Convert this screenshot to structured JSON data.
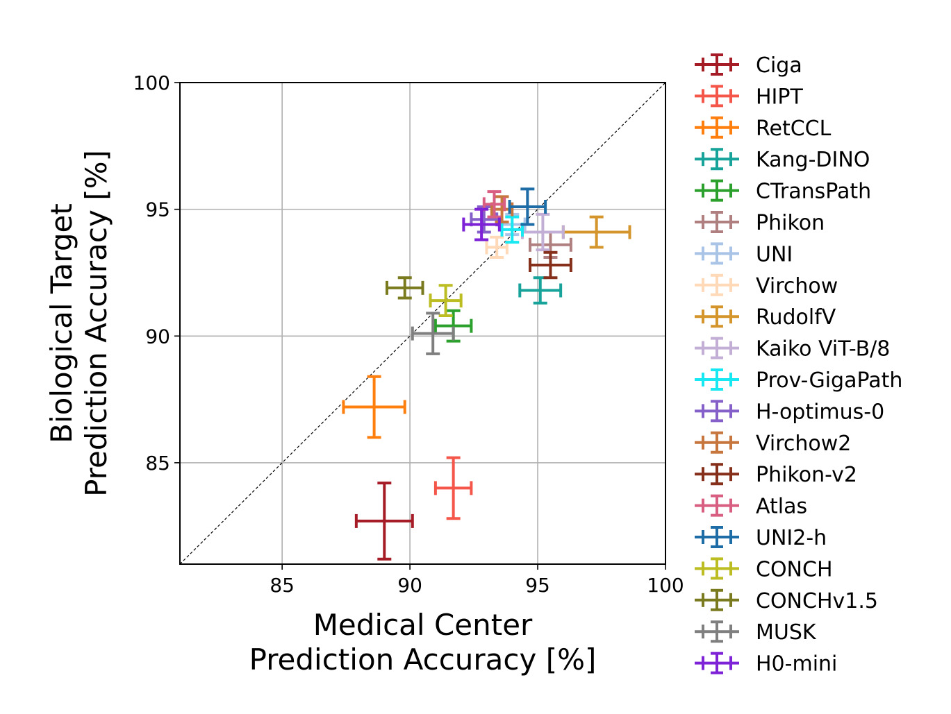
{
  "chart_data": {
    "type": "scatter",
    "title": "",
    "xlabel": [
      "Medical Center",
      "Prediction Accuracy [%]"
    ],
    "ylabel": [
      "Biological Target",
      "Prediction Accuracy [%]"
    ],
    "xlim": [
      81,
      100
    ],
    "ylim": [
      81,
      100
    ],
    "xticks": [
      85,
      90,
      95,
      100
    ],
    "yticks": [
      85,
      90,
      95,
      100
    ],
    "grid": true,
    "diagonal_reference_line": true,
    "legend_position": "outside-right",
    "series": [
      {
        "name": "Ciga",
        "color": "#a61c26",
        "x": 89.0,
        "y": 82.7,
        "xerr": 1.1,
        "yerr": 1.5
      },
      {
        "name": "HIPT",
        "color": "#f5564a",
        "x": 91.7,
        "y": 84.0,
        "xerr": 0.7,
        "yerr": 1.2
      },
      {
        "name": "RetCCL",
        "color": "#ff7f0e",
        "x": 88.6,
        "y": 87.2,
        "xerr": 1.2,
        "yerr": 1.2
      },
      {
        "name": "Kang-DINO",
        "color": "#17a39a",
        "x": 95.1,
        "y": 91.8,
        "xerr": 0.8,
        "yerr": 0.5
      },
      {
        "name": "CTransPath",
        "color": "#2ca02c",
        "x": 91.7,
        "y": 90.4,
        "xerr": 0.7,
        "yerr": 0.6
      },
      {
        "name": "Phikon",
        "color": "#b07f7f",
        "x": 95.5,
        "y": 93.6,
        "xerr": 0.8,
        "yerr": 0.5
      },
      {
        "name": "UNI",
        "color": "#a9c4e6",
        "x": 94.0,
        "y": 94.4,
        "xerr": 0.5,
        "yerr": 0.4
      },
      {
        "name": "Virchow",
        "color": "#ffd9b8",
        "x": 93.4,
        "y": 93.5,
        "xerr": 0.4,
        "yerr": 0.4
      },
      {
        "name": "RudolfV",
        "color": "#d4962c",
        "x": 97.3,
        "y": 94.1,
        "xerr": 1.3,
        "yerr": 0.6
      },
      {
        "name": "Kaiko ViT-B/8",
        "color": "#c3afd6",
        "x": 95.2,
        "y": 94.1,
        "xerr": 0.8,
        "yerr": 0.7
      },
      {
        "name": "Prov-GigaPath",
        "color": "#17e8f2",
        "x": 94.0,
        "y": 94.2,
        "xerr": 0.4,
        "yerr": 0.5
      },
      {
        "name": "H-optimus-0",
        "color": "#8560c9",
        "x": 92.9,
        "y": 94.6,
        "xerr": 0.5,
        "yerr": 0.5
      },
      {
        "name": "Virchow2",
        "color": "#c7773d",
        "x": 93.6,
        "y": 95.0,
        "xerr": 0.4,
        "yerr": 0.5
      },
      {
        "name": "Phikon-v2",
        "color": "#86301c",
        "x": 95.5,
        "y": 92.8,
        "xerr": 0.8,
        "yerr": 0.5
      },
      {
        "name": "Atlas",
        "color": "#d95f82",
        "x": 93.3,
        "y": 95.2,
        "xerr": 0.4,
        "yerr": 0.5
      },
      {
        "name": "UNI2-h",
        "color": "#1f6da6",
        "x": 94.6,
        "y": 95.1,
        "xerr": 0.7,
        "yerr": 0.7
      },
      {
        "name": "CONCH",
        "color": "#bcbd22",
        "x": 91.4,
        "y": 91.4,
        "xerr": 0.6,
        "yerr": 0.6
      },
      {
        "name": "CONCHv1.5",
        "color": "#7a7a1f",
        "x": 89.8,
        "y": 91.9,
        "xerr": 0.7,
        "yerr": 0.4
      },
      {
        "name": "MUSK",
        "color": "#7f7f7f",
        "x": 90.9,
        "y": 90.1,
        "xerr": 0.8,
        "yerr": 0.8
      },
      {
        "name": "H0-mini",
        "color": "#7d22d6",
        "x": 92.8,
        "y": 94.4,
        "xerr": 0.7,
        "yerr": 0.6
      }
    ]
  }
}
